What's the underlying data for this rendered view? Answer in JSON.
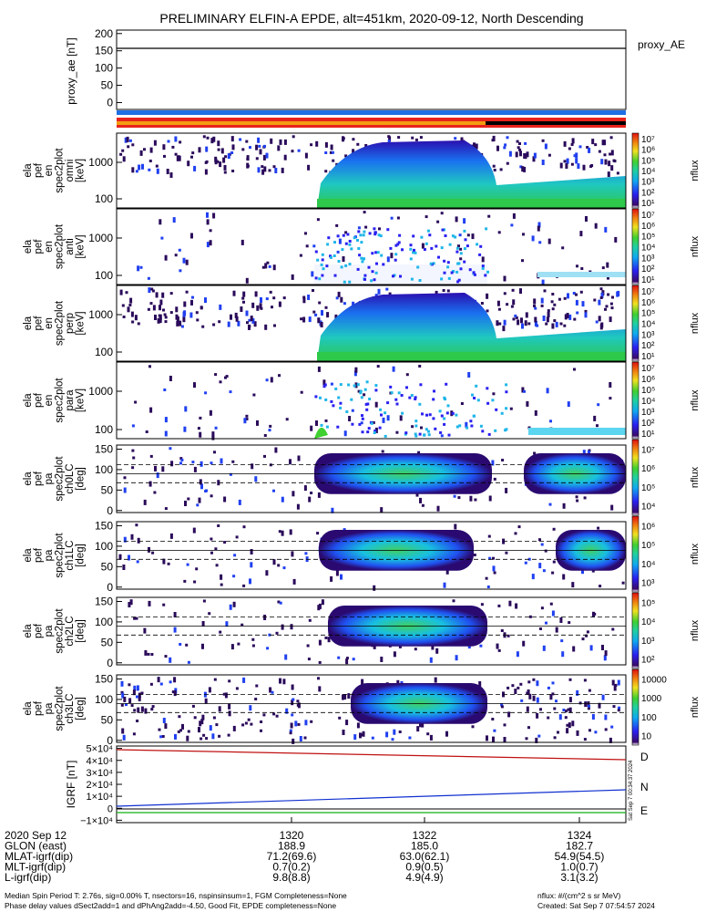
{
  "title": "PRELIMINARY ELFIN-A EPDE, alt=451km, 2020-09-12, North Descending",
  "colors": {
    "bar_blue": "#1f6fe5",
    "bar_red": "#e8221c",
    "bar_orange": "#f39c12",
    "bar_black": "#000000",
    "spec_green": "#2ec84a",
    "spec_cyan": "#1fb6e8",
    "spec_blue": "#1a3cf0",
    "spec_dark": "#2a0a5a",
    "igrf_d": "#d11010",
    "igrf_n": "#1030d0",
    "igrf_e": "#10b010"
  },
  "chart_data": [
    {
      "type": "line",
      "panel": "proxy_ae",
      "ylabel": "proxy_ae [nT]",
      "legend": "proxy_AE",
      "ylim": [
        -20,
        210
      ],
      "yticks": [
        "0",
        "50",
        "100",
        "150",
        "200"
      ],
      "series": [
        {
          "name": "proxy_AE",
          "values": [
            155,
            155
          ]
        }
      ]
    },
    {
      "type": "heatmap",
      "panel": "en_spec_omni",
      "ylabel_lines": [
        "ela",
        "pef",
        "en",
        "spec2plot",
        "omni",
        "[keV]"
      ],
      "yticks": [
        "100",
        "1000"
      ],
      "colorbar_label": "nflux",
      "colorbar_ticks": [
        "10¹",
        "10²",
        "10³",
        "10⁴",
        "10⁵",
        "10⁶",
        "10⁷"
      ]
    },
    {
      "type": "heatmap",
      "panel": "en_spec_anti",
      "ylabel_lines": [
        "ela",
        "pef",
        "en",
        "spec2plot",
        "anti",
        "[keV]"
      ],
      "yticks": [
        "100",
        "1000"
      ],
      "colorbar_label": "nflux",
      "colorbar_ticks": [
        "10¹",
        "10²",
        "10³",
        "10⁴",
        "10⁵",
        "10⁶",
        "10⁷"
      ]
    },
    {
      "type": "heatmap",
      "panel": "en_spec_perp",
      "ylabel_lines": [
        "ela",
        "pef",
        "en",
        "spec2plot",
        "perp",
        "[keV]"
      ],
      "yticks": [
        "100",
        "1000"
      ],
      "colorbar_label": "nflux",
      "colorbar_ticks": [
        "10¹",
        "10²",
        "10³",
        "10⁴",
        "10⁵",
        "10⁶",
        "10⁷"
      ]
    },
    {
      "type": "heatmap",
      "panel": "en_spec_para",
      "ylabel_lines": [
        "ela",
        "pef",
        "en",
        "spec2plot",
        "para",
        "[keV]"
      ],
      "yticks": [
        "100",
        "1000"
      ],
      "colorbar_label": "nflux",
      "colorbar_ticks": [
        "10¹",
        "10²",
        "10³",
        "10⁴",
        "10⁵",
        "10⁶",
        "10⁷"
      ]
    },
    {
      "type": "heatmap",
      "panel": "pa_spec_ch0",
      "ylabel_lines": [
        "ela",
        "pef",
        "pa",
        "spec2plot",
        "ch0LC",
        "[deg]"
      ],
      "yticks": [
        "0",
        "50",
        "100",
        "150"
      ],
      "colorbar_label": "nflux",
      "colorbar_ticks": [
        "10⁴",
        "10⁵",
        "10⁶",
        "10⁷"
      ]
    },
    {
      "type": "heatmap",
      "panel": "pa_spec_ch1",
      "ylabel_lines": [
        "ela",
        "pef",
        "pa",
        "spec2plot",
        "ch1LC",
        "[deg]"
      ],
      "yticks": [
        "0",
        "50",
        "100",
        "150"
      ],
      "colorbar_label": "nflux",
      "colorbar_ticks": [
        "10³",
        "10⁴",
        "10⁵",
        "10⁶"
      ]
    },
    {
      "type": "heatmap",
      "panel": "pa_spec_ch2",
      "ylabel_lines": [
        "ela",
        "pef",
        "pa",
        "spec2plot",
        "ch2LC",
        "[deg]"
      ],
      "yticks": [
        "0",
        "50",
        "100",
        "150"
      ],
      "colorbar_label": "nflux",
      "colorbar_ticks": [
        "10²",
        "10³",
        "10⁴",
        "10⁵"
      ]
    },
    {
      "type": "heatmap",
      "panel": "pa_spec_ch3",
      "ylabel_lines": [
        "ela",
        "pef",
        "pa",
        "spec2plot",
        "ch3LC",
        "[deg]"
      ],
      "yticks": [
        "0",
        "50",
        "100",
        "150"
      ],
      "colorbar_label": "nflux",
      "colorbar_ticks": [
        "10",
        "100",
        "1000",
        "10000"
      ]
    },
    {
      "type": "line",
      "panel": "igrf",
      "ylabel": "IGRF [nT]",
      "yticks": [
        "−1×10⁴",
        "0",
        "1×10⁴",
        "2×10⁴",
        "3×10⁴",
        "4×10⁴",
        "5×10⁴"
      ],
      "ylim": [
        -12000,
        52000
      ],
      "series": [
        {
          "name": "D",
          "values": [
            49500,
            40500
          ]
        },
        {
          "name": "N",
          "values": [
            2500,
            15000
          ]
        },
        {
          "name": "E",
          "values": [
            -3000,
            -3000
          ]
        }
      ],
      "side_note": "Sat Sep  7 00:34:37 2024"
    }
  ],
  "axis_table": {
    "rows": [
      [
        "2020 Sep 12",
        "1320",
        "1322",
        "1324"
      ],
      [
        "GLON (east)",
        "188.9",
        "185.0",
        "182.7"
      ],
      [
        "MLAT-igrf(dip)",
        "71.2(69.6)",
        "63.0(62.1)",
        "54.9(54.5)"
      ],
      [
        "MLT-igrf(dip)",
        "0.7(0.2)",
        "0.9(0.5)",
        "1.0(0.7)"
      ],
      [
        "L-igrf(dip)",
        "9.8(8.8)",
        "4.9(4.9)",
        "3.1(3.2)"
      ]
    ]
  },
  "footer": {
    "left_line1": "Median Spin Period T: 2.76s, sig=0.00% T, nsectors=16, nspinsinsum=1, FGM Completeness=None",
    "left_line2": "Phase delay values dSect2add=1 and dPhAng2add=-4.50, Good Fit, EPDE completeness=None",
    "right_line1": "nflux: #/(cm^2 s sr MeV)",
    "right_line2": "Created: Sat Sep  7 07:54:57 2024"
  }
}
